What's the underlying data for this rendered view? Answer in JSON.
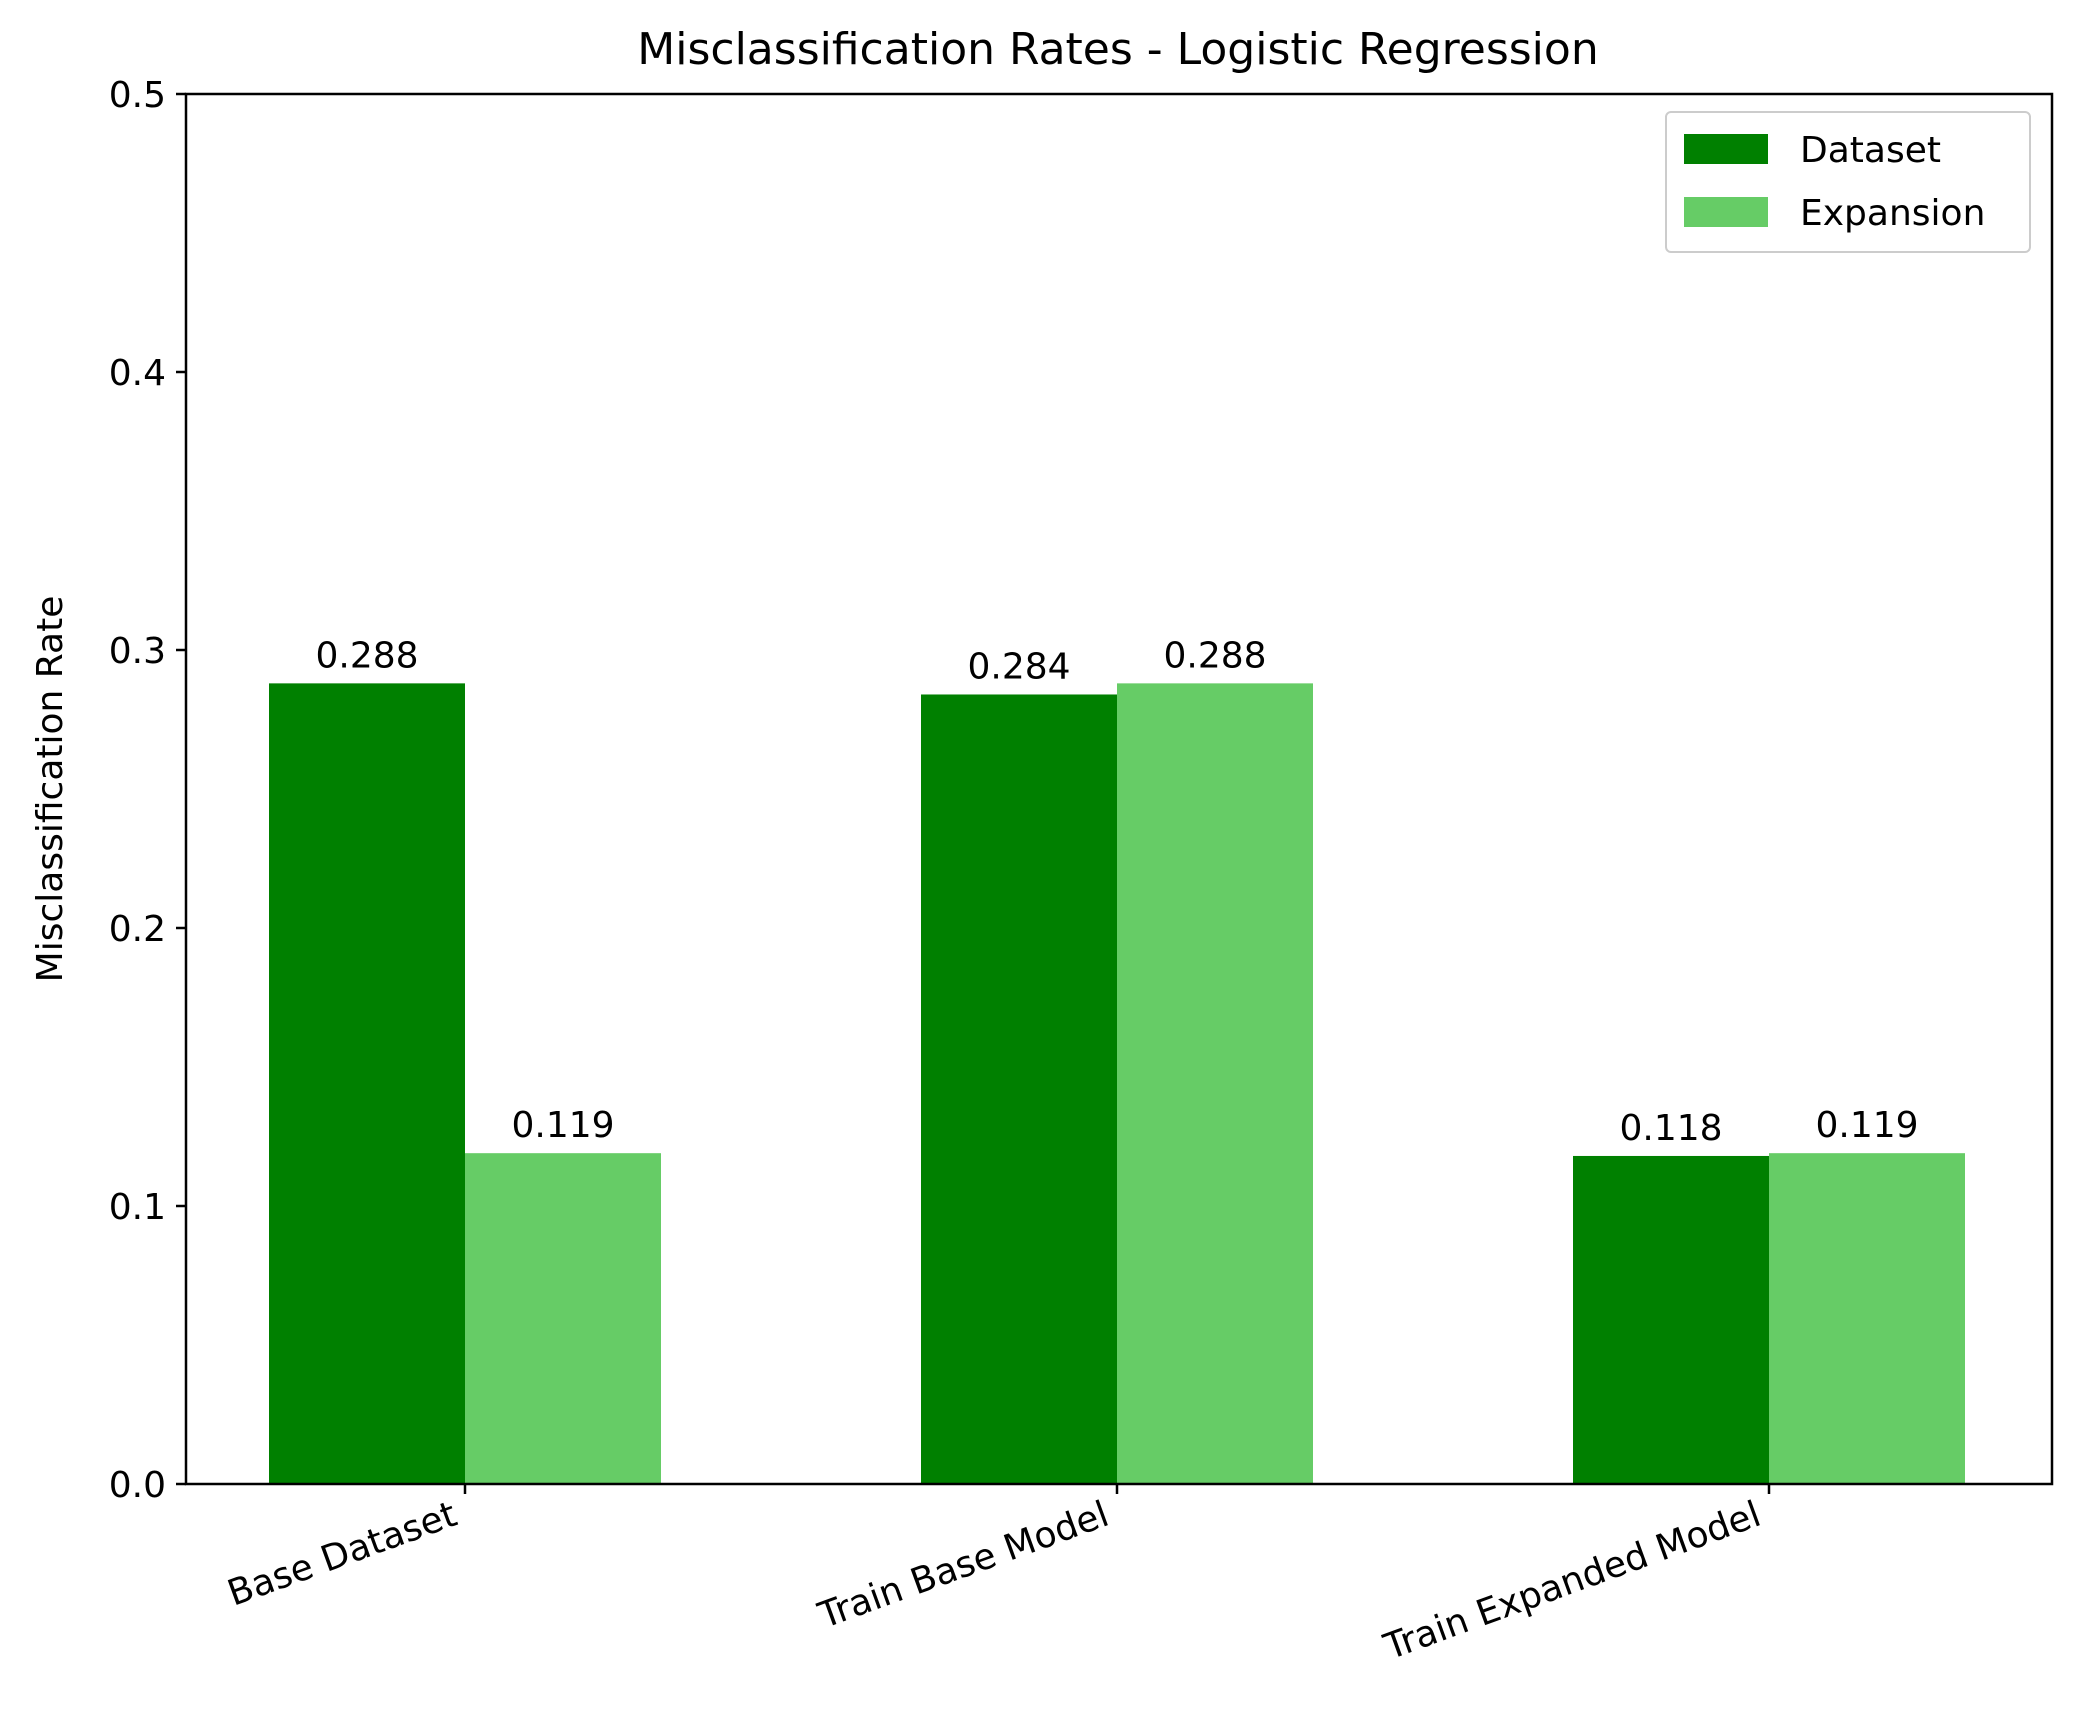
{
  "chart_data": {
    "type": "bar",
    "title": "Misclassification Rates - Logistic Regression",
    "xlabel": "",
    "ylabel": "Misclassification Rate",
    "ylim": [
      0,
      0.5
    ],
    "yticks": [
      "0.0",
      "0.1",
      "0.2",
      "0.3",
      "0.4",
      "0.5"
    ],
    "categories": [
      "Base Dataset",
      "Train Base Model",
      "Train Expanded Model"
    ],
    "series": [
      {
        "name": "Dataset",
        "color": "#008000",
        "values": [
          0.288,
          0.284,
          0.118
        ],
        "labels": [
          "0.288",
          "0.284",
          "0.118"
        ]
      },
      {
        "name": "Expansion",
        "color": "#66cc66",
        "values": [
          0.119,
          0.288,
          0.119
        ],
        "labels": [
          "0.119",
          "0.288",
          "0.119"
        ]
      }
    ],
    "legend": "top-right",
    "grid": false
  }
}
